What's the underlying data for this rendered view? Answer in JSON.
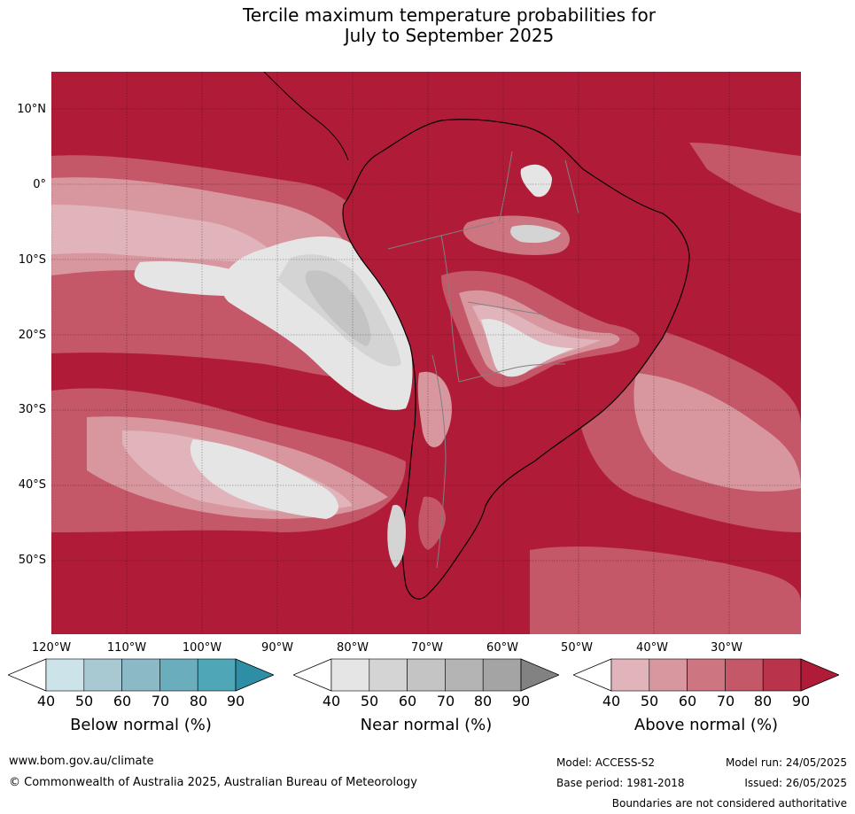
{
  "title_line1": "Tercile maximum temperature probabilities for",
  "title_line2": "July to September 2025",
  "lat_labels": [
    "10°N",
    "0°",
    "10°S",
    "20°S",
    "30°S",
    "40°S",
    "50°S"
  ],
  "lon_labels": [
    "120°W",
    "110°W",
    "100°W",
    "90°W",
    "80°W",
    "70°W",
    "60°W",
    "50°W",
    "40°W",
    "30°W"
  ],
  "colorbars": [
    {
      "label": "Below normal (%)",
      "ticks": [
        "40",
        "50",
        "60",
        "70",
        "80",
        "90"
      ],
      "colors": [
        "#cde3ea",
        "#a8c9d2",
        "#8bb9c6",
        "#6aaebe",
        "#4ea6b7",
        "#2e8fa4"
      ]
    },
    {
      "label": "Near normal (%)",
      "ticks": [
        "40",
        "50",
        "60",
        "70",
        "80",
        "90"
      ],
      "colors": [
        "#e5e5e5",
        "#d4d4d4",
        "#c4c4c4",
        "#b4b4b4",
        "#a4a4a4",
        "#828282"
      ]
    },
    {
      "label": "Above normal (%)",
      "ticks": [
        "40",
        "50",
        "60",
        "70",
        "80",
        "90"
      ],
      "colors": [
        "#e0b4ba",
        "#d8979f",
        "#cd7581",
        "#c45768",
        "#b9344b",
        "#b01c38"
      ]
    }
  ],
  "colors": {
    "above_90": "#b01c38",
    "above_80": "#b9344b",
    "above_70": "#c45768",
    "above_60": "#cd7581",
    "above_50": "#d8979f",
    "above_40": "#e0b4ba",
    "near_40": "#e5e5e5",
    "near_50": "#d4d4d4",
    "near_60": "#c4c4c4",
    "near_70": "#b0b0b0",
    "land_outline": "#000000",
    "country_border": "#808080"
  },
  "footer": {
    "website": "www.bom.gov.au/climate",
    "copyright": "© Commonwealth of Australia 2025, Australian Bureau of Meteorology",
    "model": "Model: ACCESS-S2",
    "model_run": "Model run: 24/05/2025",
    "base_period": "Base period: 1981-2018",
    "issued": "Issued: 26/05/2025",
    "disclaimer": "Boundaries are not considered authoritative"
  }
}
